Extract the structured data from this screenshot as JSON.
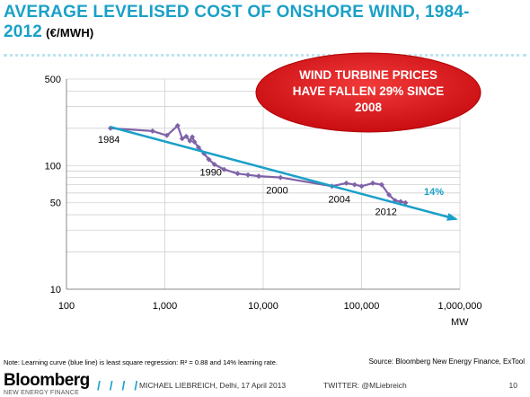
{
  "header": {
    "title": "AVERAGE LEVELISED COST OF ONSHORE WIND, 1984-2012",
    "unit": "(€/MWH)"
  },
  "callout": {
    "line1": "WIND TURBINE PRICES",
    "line2": "HAVE FALLEN 29% SINCE",
    "line3": "2008",
    "color": "#e8191e"
  },
  "chart_data": {
    "type": "line",
    "xscale": "log",
    "yscale": "log",
    "xlim": [
      100,
      1000000
    ],
    "ylim": [
      10,
      500
    ],
    "xticks": [
      "100",
      "1,000",
      "10,000",
      "100,000",
      "1,000,000"
    ],
    "yticks": [
      "10",
      "50",
      "100",
      "500"
    ],
    "xlabel": "MW",
    "grid": true,
    "series": [
      {
        "color": "#7f62a8",
        "x": [
          280,
          750,
          1050,
          1350,
          1500,
          1650,
          1800,
          1900,
          2000,
          2200,
          2500,
          2800,
          3200,
          4000,
          5500,
          7000,
          9000,
          15000,
          50000,
          70000,
          85000,
          100000,
          130000,
          160000,
          190000,
          220000,
          250000,
          280000
        ],
        "y": [
          200,
          190,
          175,
          210,
          165,
          172,
          158,
          170,
          155,
          140,
          125,
          112,
          102,
          93,
          86,
          84,
          82,
          80,
          68,
          72,
          70,
          68,
          72,
          70,
          58,
          52,
          51,
          50
        ]
      },
      {
        "color": "#1aa0c8",
        "x": [
          280,
          900000
        ],
        "y": [
          205,
          37
        ]
      }
    ],
    "annotations": [
      {
        "text": "1984",
        "x": 280,
        "y": 200
      },
      {
        "text": "1990",
        "x": 2800,
        "y": 112
      },
      {
        "text": "2000",
        "x": 15000,
        "y": 80
      },
      {
        "text": "2004",
        "x": 50000,
        "y": 68
      },
      {
        "text": "2012",
        "x": 280000,
        "y": 50
      }
    ],
    "learning_rate_label": "14%"
  },
  "footer": {
    "note": "Note: Learning curve (blue line) is least square regression: R² = 0.88 and 14% learning rate.",
    "source": "Source: Bloomberg New Energy Finance, ExTool",
    "logo_text": "Bloomberg",
    "logo_sub": "NEW ENERGY FINANCE",
    "slashes": "/ / / /",
    "presenter": "MICHAEL LIEBREICH, Delhi, 17 April 2013",
    "twitter": "TWITTER: @MLiebreich",
    "page": "10"
  }
}
